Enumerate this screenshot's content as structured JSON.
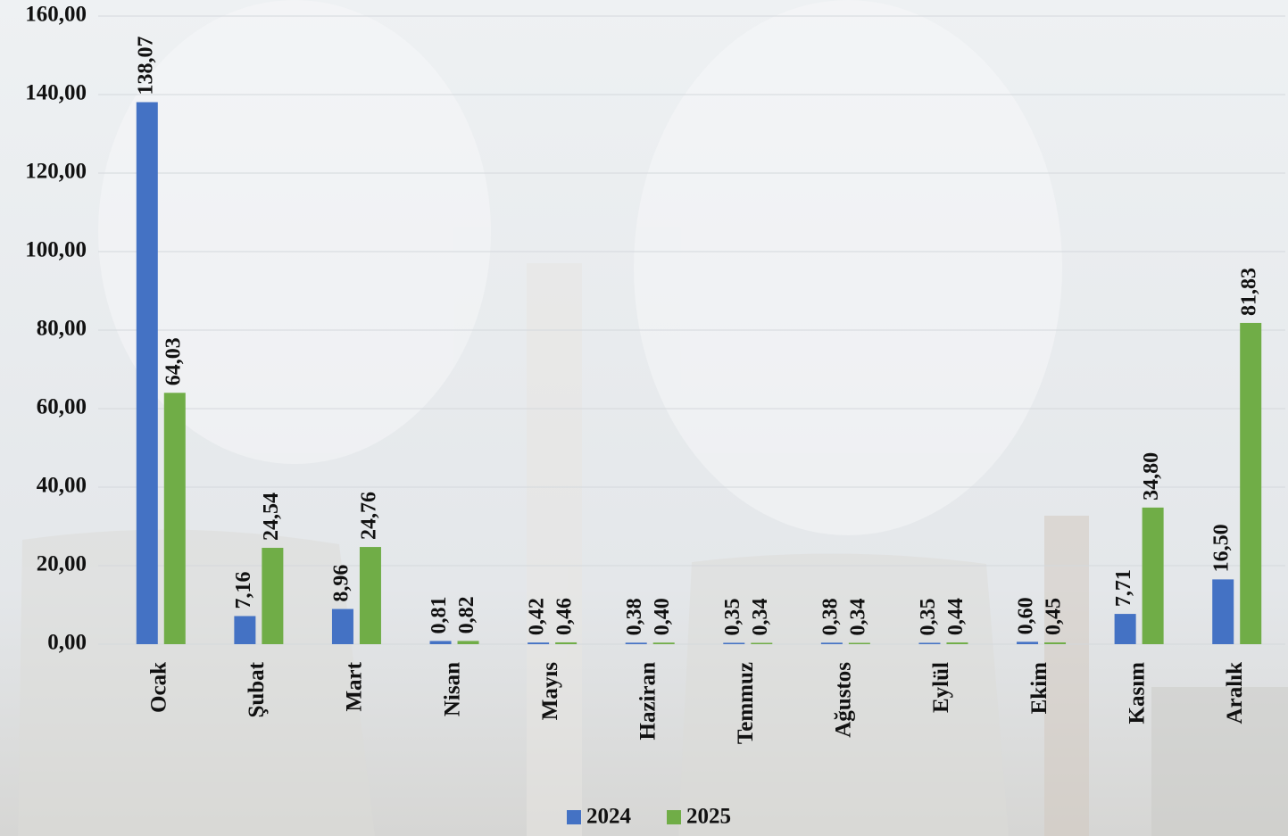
{
  "chart_data": {
    "type": "bar",
    "categories": [
      "Ocak",
      "Şubat",
      "Mart",
      "Nisan",
      "Mayıs",
      "Haziran",
      "Temmuz",
      "Ağustos",
      "Eylül",
      "Ekim",
      "Kasım",
      "Aralık"
    ],
    "series": [
      {
        "name": "2024",
        "color": "#4472c4",
        "values": [
          138.07,
          7.16,
          8.96,
          0.81,
          0.42,
          0.38,
          0.35,
          0.38,
          0.35,
          0.6,
          7.71,
          16.5
        ],
        "value_labels": [
          "138,07",
          "7,16",
          "8,96",
          "0,81",
          "0,42",
          "0,38",
          "0,35",
          "0,38",
          "0,35",
          "0,60",
          "7,71",
          "16,50"
        ]
      },
      {
        "name": "2025",
        "color": "#70ad47",
        "values": [
          64.03,
          24.54,
          24.76,
          0.82,
          0.46,
          0.4,
          0.34,
          0.34,
          0.44,
          0.45,
          34.8,
          81.83
        ],
        "value_labels": [
          "64,03",
          "24,54",
          "24,76",
          "0,82",
          "0,46",
          "0,40",
          "0,34",
          "0,34",
          "0,44",
          "0,45",
          "34,80",
          "81,83"
        ]
      }
    ],
    "ylim": [
      0,
      160
    ],
    "yticks": [
      {
        "value": 0,
        "label": "0,00"
      },
      {
        "value": 20,
        "label": "20,00"
      },
      {
        "value": 40,
        "label": "40,00"
      },
      {
        "value": 60,
        "label": "60,00"
      },
      {
        "value": 80,
        "label": "80,00"
      },
      {
        "value": 100,
        "label": "100,00"
      },
      {
        "value": 120,
        "label": "120,00"
      },
      {
        "value": 140,
        "label": "140,00"
      },
      {
        "value": 160,
        "label": "160,00"
      }
    ],
    "grid": true,
    "legend": "bottom"
  }
}
